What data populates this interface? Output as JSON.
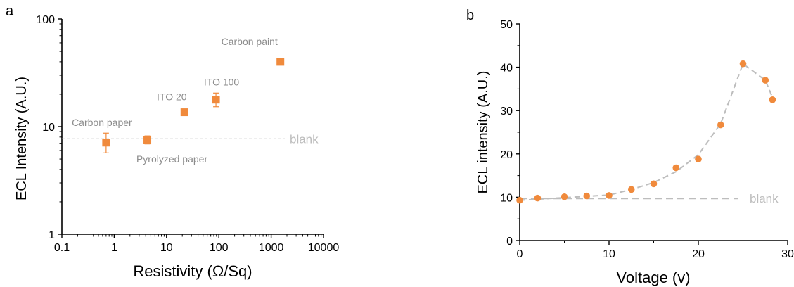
{
  "chart_data": [
    {
      "panel_label": "a",
      "type": "scatter",
      "xlabel": "Resistivity (Ω/Sq)",
      "ylabel": "ECL Intensity (A.U.)",
      "xscale": "log",
      "yscale": "log",
      "xlim": [
        0.1,
        10000
      ],
      "ylim": [
        1,
        100
      ],
      "x_tick_labels": [
        "0.1",
        "1",
        "10",
        "100",
        "1000",
        "10000"
      ],
      "y_tick_labels": [
        "1",
        "10",
        "100"
      ],
      "series": [
        {
          "points": [
            {
              "label": "Carbon paper",
              "x": 0.7,
              "y": 7.1,
              "err_low": 5.7,
              "err_high": 8.7
            },
            {
              "label": "Pyrolyzed paper",
              "x": 4.3,
              "y": 7.5,
              "err_low": 6.9,
              "err_high": 8.2
            },
            {
              "label": "ITO 20",
              "x": 22,
              "y": 13.6,
              "err_low": 13.6,
              "err_high": 13.6
            },
            {
              "label": "ITO 100",
              "x": 88,
              "y": 17.8,
              "err_low": 15.3,
              "err_high": 20.5
            },
            {
              "label": "Carbon paint",
              "x": 1500,
              "y": 40,
              "err_low": 40,
              "err_high": 40
            }
          ]
        }
      ],
      "reference_line": {
        "label": "blank",
        "y": 7.7
      },
      "colors": {
        "marker": "#f08a3c",
        "label": "#8c8c8c",
        "reference": "#bdbdbd"
      }
    },
    {
      "panel_label": "b",
      "type": "scatter",
      "xlabel": "Voltage (v)",
      "ylabel": "ECL intensity (A.U.)",
      "xlim": [
        0,
        30
      ],
      "ylim": [
        0,
        50
      ],
      "x_tick_labels": [
        "0",
        "10",
        "20",
        "30"
      ],
      "y_tick_labels": [
        "0",
        "10",
        "20",
        "30",
        "40",
        "50"
      ],
      "series": [
        {
          "x": [
            0,
            2,
            5,
            7.5,
            10,
            12.5,
            15,
            17.5,
            20,
            22.5,
            25,
            27.5,
            28.3
          ],
          "y": [
            9.3,
            9.8,
            10.1,
            10.3,
            10.4,
            11.8,
            13.1,
            16.8,
            18.8,
            26.7,
            40.8,
            37.0,
            32.5
          ]
        }
      ],
      "trend_line": {
        "x": [
          0,
          5,
          10,
          12.5,
          15,
          17.5,
          20,
          22.5,
          25,
          27.5,
          28.3
        ],
        "y": [
          9.3,
          9.9,
          10.5,
          11.8,
          13.4,
          15.9,
          19.8,
          27.0,
          40.8,
          37.0,
          33.0
        ]
      },
      "reference_line": {
        "label": "blank",
        "y": 9.7
      },
      "colors": {
        "marker": "#f08a3c",
        "trend": "#bdbdbd",
        "reference": "#bdbdbd"
      }
    }
  ]
}
